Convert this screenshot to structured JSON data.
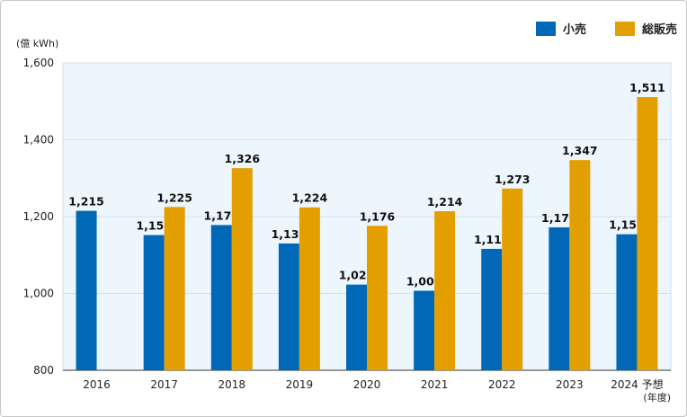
{
  "chart_data": {
    "type": "bar",
    "ylabel": "(億 kWh)",
    "xunit": "(年度)",
    "ylim": [
      800,
      1600
    ],
    "yticks": [
      "800",
      "1,000",
      "1,200",
      "1,400",
      "1,600"
    ],
    "categories": [
      "2016",
      "2017",
      "2018",
      "2019",
      "2020",
      "2021",
      "2022",
      "2023",
      "2024 予想"
    ],
    "series": [
      {
        "name": "小売",
        "color": "#0068b7",
        "values": [
          1215,
          1152,
          1178,
          1130,
          1023,
          1007,
          1116,
          1172,
          1154
        ]
      },
      {
        "name": "総販売",
        "color": "#e39e00",
        "values": [
          null,
          1225,
          1326,
          1224,
          1176,
          1214,
          1273,
          1347,
          1511
        ]
      }
    ],
    "legend": "top-right",
    "plot_background": "#eef6fd"
  }
}
